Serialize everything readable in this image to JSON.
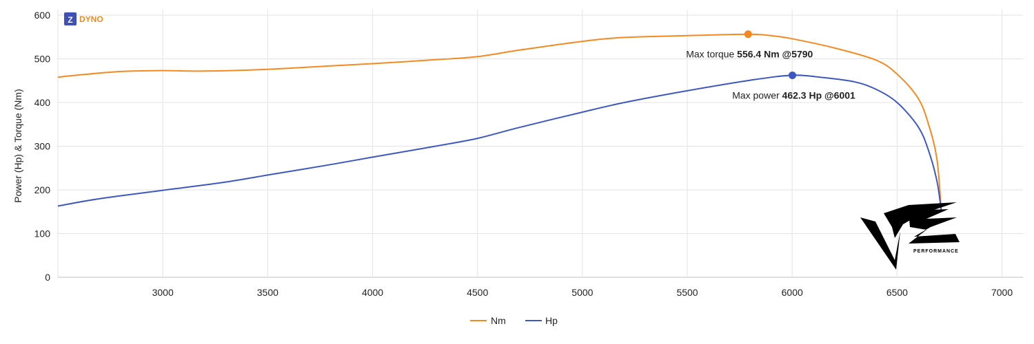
{
  "brand": {
    "logo_letter": "Z",
    "logo_text": "DYNO",
    "logo_color": "#3f51b5",
    "text_color": "#ef8a1e"
  },
  "watermark": {
    "text": "PERFORMANCE"
  },
  "chart_data": {
    "type": "line",
    "title": "",
    "xlabel": "",
    "ylabel": "Power (Hp) & Torque (Nm)",
    "xlim": [
      2500,
      7100
    ],
    "ylim": [
      0,
      600
    ],
    "xticks": [
      3000,
      3500,
      4000,
      4500,
      5000,
      5500,
      6000,
      6500,
      7000
    ],
    "yticks": [
      0,
      100,
      200,
      300,
      400,
      500,
      600
    ],
    "grid": true,
    "legend_position": "bottom",
    "series": [
      {
        "name": "Nm",
        "color": "#f5891f",
        "x": [
          2500,
          2600,
          2800,
          3000,
          3200,
          3500,
          3800,
          4000,
          4300,
          4500,
          4700,
          5000,
          5200,
          5500,
          5790,
          5900,
          6000,
          6200,
          6400,
          6500,
          6600,
          6650,
          6690,
          6710
        ],
        "y": [
          458,
          463,
          471,
          473,
          472,
          476,
          484,
          489,
          498,
          505,
          520,
          540,
          549,
          553,
          556.4,
          553,
          546,
          525,
          497,
          465,
          410,
          350,
          270,
          155
        ]
      },
      {
        "name": "Hp",
        "color": "#3b57c4",
        "x": [
          2500,
          2700,
          3000,
          3300,
          3500,
          3800,
          4000,
          4300,
          4500,
          4700,
          5000,
          5200,
          5500,
          5800,
          6001,
          6150,
          6300,
          6400,
          6500,
          6600,
          6650,
          6690,
          6710
        ],
        "y": [
          163,
          180,
          199,
          218,
          234,
          258,
          275,
          300,
          318,
          343,
          378,
          400,
          427,
          451,
          462.3,
          457,
          447,
          430,
          400,
          345,
          290,
          220,
          155
        ]
      }
    ],
    "markers": [
      {
        "series": "Nm",
        "x": 5790,
        "y": 556.4,
        "label_prefix": "Max torque",
        "label_value": "556.4 Nm @5790"
      },
      {
        "series": "Hp",
        "x": 6001,
        "y": 462.3,
        "label_prefix": "Max power",
        "label_value": "462.3 Hp @6001"
      }
    ]
  }
}
